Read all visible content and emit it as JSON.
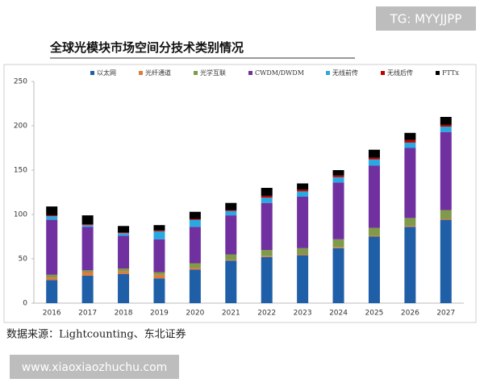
{
  "watermarks": {
    "top": "TG: MYYJJPP",
    "bottom": "www.xiaoxiaozhuchu.com"
  },
  "chart_data": {
    "type": "bar",
    "stacked": true,
    "title": "全球光模块市场空间分技术类别情况",
    "source": "数据来源：Lightcounting、东北证券",
    "categories": [
      "2016",
      "2017",
      "2018",
      "2019",
      "2020",
      "2021",
      "2022",
      "2023",
      "2024",
      "2025",
      "2026",
      "2027"
    ],
    "series": [
      {
        "name": "以太网",
        "color": "#1f5fa8",
        "values": [
          26,
          31,
          33,
          28,
          38,
          48,
          52,
          54,
          62,
          75,
          86,
          94
        ]
      },
      {
        "name": "光纤通道",
        "color": "#e07b39",
        "values": [
          3,
          4,
          3,
          4,
          2,
          1,
          1,
          1,
          1,
          1,
          1,
          1
        ]
      },
      {
        "name": "光学互联",
        "color": "#7f9a4a",
        "values": [
          3,
          2,
          3,
          3,
          5,
          6,
          7,
          7,
          9,
          9,
          9,
          10
        ]
      },
      {
        "name": "CWDM/DWDM",
        "color": "#7030a0",
        "values": [
          62,
          49,
          37,
          37,
          41,
          44,
          53,
          58,
          64,
          70,
          79,
          88
        ]
      },
      {
        "name": "无线前传",
        "color": "#2aa8e0",
        "values": [
          4,
          2,
          3,
          9,
          8,
          5,
          6,
          6,
          6,
          7,
          6,
          6
        ]
      },
      {
        "name": "无线后传",
        "color": "#c00000",
        "values": [
          1,
          1,
          1,
          1,
          1,
          1,
          2,
          2,
          2,
          2,
          3,
          2
        ]
      },
      {
        "name": "FTTx",
        "color": "#000000",
        "values": [
          10,
          10,
          7,
          6,
          8,
          8,
          9,
          7,
          6,
          9,
          8,
          9
        ]
      }
    ],
    "ylim": [
      0,
      250
    ],
    "yticks": [
      0,
      50,
      100,
      150,
      200,
      250
    ],
    "grid": false
  }
}
